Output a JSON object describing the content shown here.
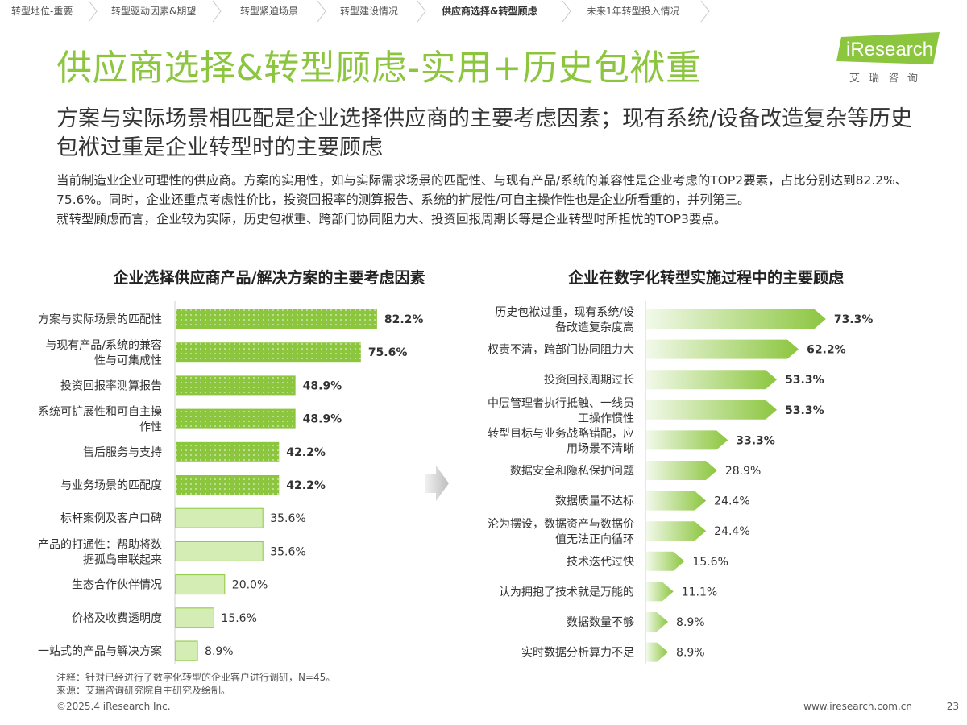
{
  "colors": {
    "accent": "#8cc63f",
    "bar_top": "#8cc63f",
    "bar_light": "#d3edb4",
    "bar_light_border": "#8cc63f",
    "text": "#333333"
  },
  "nav": {
    "tabs": [
      {
        "label": "转型地位-重要",
        "active": false
      },
      {
        "label": "转型驱动因素&期望",
        "active": false
      },
      {
        "label": "转型紧迫场景",
        "active": false
      },
      {
        "label": "转型建设情况",
        "active": false
      },
      {
        "label": "供应商选择&转型顾虑",
        "active": true
      },
      {
        "label": "未来1年转型投入情况",
        "active": false
      }
    ]
  },
  "header": {
    "title": "供应商选择&转型顾虑-实用+历史包袱重",
    "logo_text": "iResearch",
    "logo_sub": "艾瑞咨询",
    "logo_icon": "iresearch-logo"
  },
  "subtitle": "方案与实际场景相匹配是企业选择供应商的主要考虑因素；现有系统/设备改造复杂等历史包袱过重是企业转型时的主要顾虑",
  "body": {
    "para1": "当前制造业企业可理性的供应商。方案的实用性，如与实际需求场景的匹配性、与现有产品/系统的兼容性是企业考虑的TOP2要素，占比分别达到82.2%、75.6%。同时，企业还重点考虑性价比，投资回报率的测算报告、系统的扩展性/可自主操作性也是企业所看重的，并列第三。",
    "para2": "就转型顾虑而言，企业较为实际，历史包袱重、跨部门协同阻力大、投资回报周期长等是企业转型时所担忧的TOP3要点。"
  },
  "chart_data": [
    {
      "type": "bar",
      "orientation": "horizontal",
      "title": "企业选择供应商产品/解决方案的主要考虑因素",
      "unit": "%",
      "categories": [
        "方案与实际场景的匹配性",
        "与现有产品/系统的兼容性与可集成性",
        "投资回报率测算报告",
        "系统可扩展性和可自主操作性",
        "售后服务与支持",
        "与业务场景的匹配度",
        "标杆案例及客户口碑",
        "产品的打通性：帮助将数据孤岛串联起来",
        "生态合作伙伴情况",
        "价格及收费透明度",
        "一站式的产品与解决方案"
      ],
      "category_lines": [
        [
          "方案与实际场景的匹配性"
        ],
        [
          "与现有产品/系统的兼容",
          "性与可集成性"
        ],
        [
          "投资回报率测算报告"
        ],
        [
          "系统可扩展性和可自主操",
          "作性"
        ],
        [
          "售后服务与支持"
        ],
        [
          "与业务场景的匹配度"
        ],
        [
          "标杆案例及客户口碑"
        ],
        [
          "产品的打通性：帮助将数",
          "据孤岛串联起来"
        ],
        [
          "生态合作伙伴情况"
        ],
        [
          "价格及收费透明度"
        ],
        [
          "一站式的产品与解决方案"
        ]
      ],
      "values": [
        82.2,
        75.6,
        48.9,
        48.9,
        42.2,
        42.2,
        35.6,
        35.6,
        20.0,
        15.6,
        8.9
      ],
      "value_labels": [
        "82.2%",
        "75.6%",
        "48.9%",
        "48.9%",
        "42.2%",
        "42.2%",
        "35.6%",
        "35.6%",
        "20.0%",
        "15.6%",
        "8.9%"
      ],
      "highlight_top_n": 6,
      "xlim": [
        0,
        100
      ]
    },
    {
      "type": "bar",
      "orientation": "horizontal",
      "style": "arrow",
      "title": "企业在数字化转型实施过程中的主要顾虑",
      "unit": "%",
      "categories": [
        "历史包袱过重，现有系统/设备改造复杂度高",
        "权责不清，跨部门协同阻力大",
        "投资回报周期过长",
        "中层管理者执行抵触、一线员工操作惯性",
        "转型目标与业务战略错配，应用场景不清晰",
        "数据安全和隐私保护问题",
        "数据质量不达标",
        "沦为摆设，数据资产与数据价值无法正向循环",
        "技术迭代过快",
        "认为拥抱了技术就是万能的",
        "数据数量不够",
        "实时数据分析算力不足"
      ],
      "category_lines": [
        [
          "历史包袱过重，现有系统/设",
          "备改造复杂度高"
        ],
        [
          "权责不清，跨部门协同阻力大"
        ],
        [
          "投资回报周期过长"
        ],
        [
          "中层管理者执行抵触、一线员",
          "工操作惯性"
        ],
        [
          "转型目标与业务战略错配，应",
          "用场景不清晰"
        ],
        [
          "数据安全和隐私保护问题"
        ],
        [
          "数据质量不达标"
        ],
        [
          "沦为摆设，数据资产与数据价",
          "值无法正向循环"
        ],
        [
          "技术迭代过快"
        ],
        [
          "认为拥抱了技术就是万能的"
        ],
        [
          "数据数量不够"
        ],
        [
          "实时数据分析算力不足"
        ]
      ],
      "values": [
        73.3,
        62.2,
        53.3,
        53.3,
        33.3,
        28.9,
        24.4,
        24.4,
        15.6,
        11.1,
        8.9,
        8.9
      ],
      "value_labels": [
        "73.3%",
        "62.2%",
        "53.3%",
        "53.3%",
        "33.3%",
        "28.9%",
        "24.4%",
        "24.4%",
        "15.6%",
        "11.1%",
        "8.9%",
        "8.9%"
      ],
      "bold_top_n": 5,
      "xlim": [
        0,
        100
      ]
    }
  ],
  "footer": {
    "note": "注释：针对已经进行了数字化转型的企业客户进行调研，N=45。",
    "source": "来源：艾瑞咨询研究院自主研究及绘制。",
    "copyright": "©2025.4 iResearch Inc.",
    "website": "www.iresearch.com.cn",
    "page": "23"
  }
}
